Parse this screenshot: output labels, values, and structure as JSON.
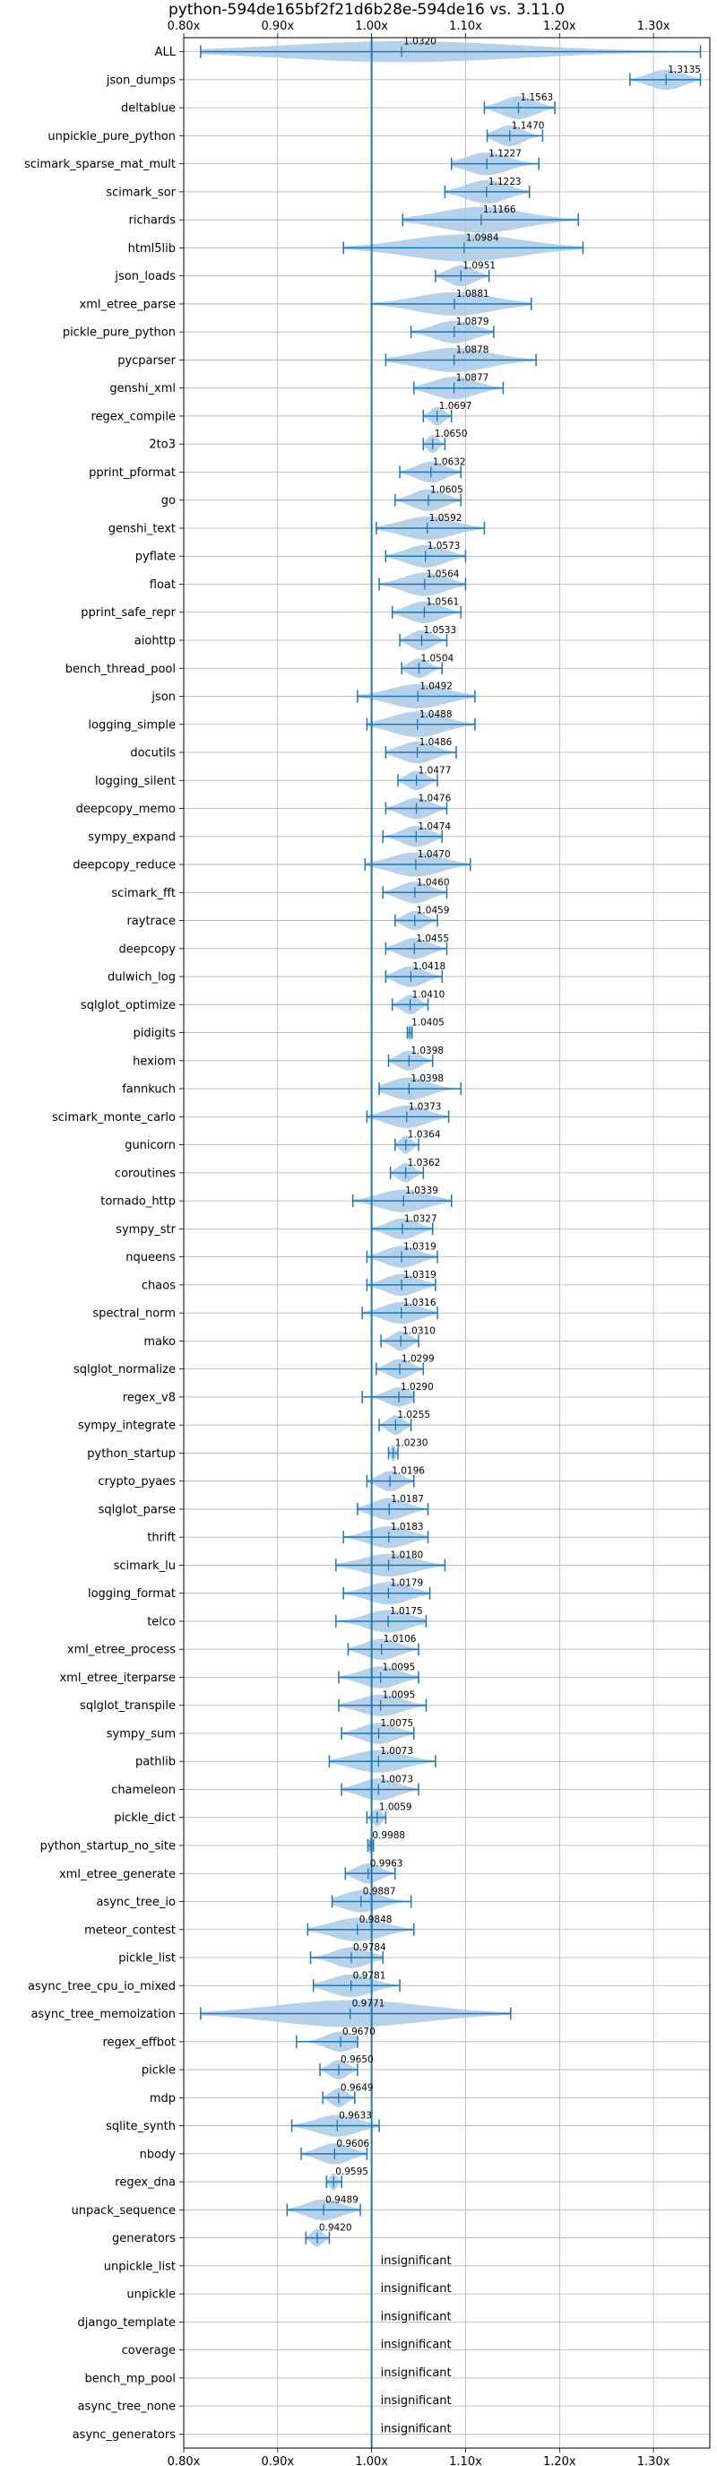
{
  "chart_data": {
    "type": "violin",
    "title": "python-594de165bf2f21d6b28e-594de16 vs. 3.11.0",
    "xlim": [
      0.8,
      1.36
    ],
    "xticks": [
      {
        "value": 0.8,
        "label": "0.80x"
      },
      {
        "value": 0.9,
        "label": "0.90x"
      },
      {
        "value": 1.0,
        "label": "1.00x"
      },
      {
        "value": 1.1,
        "label": "1.10x"
      },
      {
        "value": 1.2,
        "label": "1.20x"
      },
      {
        "value": 1.3,
        "label": "1.30x"
      }
    ],
    "reference_line": 1.0,
    "grid": true,
    "colors": {
      "violin": "#a9c9e6",
      "whisker": "#1f77b4",
      "grid": "#b0b0b0"
    },
    "benchmarks": [
      {
        "name": "ALL",
        "value": 1.032,
        "label": "1.0320",
        "min": 0.818,
        "max": 1.35,
        "spread": 0.03
      },
      {
        "name": "json_dumps",
        "value": 1.3135,
        "label": "1.3135",
        "min": 1.275,
        "max": 1.35,
        "spread": 0.025
      },
      {
        "name": "deltablue",
        "value": 1.1563,
        "label": "1.1563",
        "min": 1.12,
        "max": 1.195,
        "spread": 0.04
      },
      {
        "name": "unpickle_pure_python",
        "value": 1.147,
        "label": "1.1470",
        "min": 1.123,
        "max": 1.182,
        "spread": 0.03
      },
      {
        "name": "scimark_sparse_mat_mult",
        "value": 1.1227,
        "label": "1.1227",
        "min": 1.085,
        "max": 1.178,
        "spread": 0.04
      },
      {
        "name": "scimark_sor",
        "value": 1.1223,
        "label": "1.1223",
        "min": 1.078,
        "max": 1.168,
        "spread": 0.045
      },
      {
        "name": "richards",
        "value": 1.1166,
        "label": "1.1166",
        "min": 1.033,
        "max": 1.22,
        "spread": 0.06
      },
      {
        "name": "html5lib",
        "value": 1.0984,
        "label": "1.0984",
        "min": 0.97,
        "max": 1.225,
        "spread": 0.09
      },
      {
        "name": "json_loads",
        "value": 1.0951,
        "label": "1.0951",
        "min": 1.068,
        "max": 1.125,
        "spread": 0.03
      },
      {
        "name": "xml_etree_parse",
        "value": 1.0881,
        "label": "1.0881",
        "min": 1.0,
        "max": 1.17,
        "spread": 0.045
      },
      {
        "name": "pickle_pure_python",
        "value": 1.0879,
        "label": "1.0879",
        "min": 1.042,
        "max": 1.13,
        "spread": 0.04
      },
      {
        "name": "pycparser",
        "value": 1.0878,
        "label": "1.0878",
        "min": 1.015,
        "max": 1.175,
        "spread": 0.05
      },
      {
        "name": "genshi_xml",
        "value": 1.0877,
        "label": "1.0877",
        "min": 1.045,
        "max": 1.14,
        "spread": 0.04
      },
      {
        "name": "regex_compile",
        "value": 1.0697,
        "label": "1.0697",
        "min": 1.055,
        "max": 1.085,
        "spread": 0.015
      },
      {
        "name": "2to3",
        "value": 1.065,
        "label": "1.0650",
        "min": 1.055,
        "max": 1.078,
        "spread": 0.012
      },
      {
        "name": "pprint_pformat",
        "value": 1.0632,
        "label": "1.0632",
        "min": 1.03,
        "max": 1.095,
        "spread": 0.03
      },
      {
        "name": "go",
        "value": 1.0605,
        "label": "1.0605",
        "min": 1.025,
        "max": 1.095,
        "spread": 0.035
      },
      {
        "name": "genshi_text",
        "value": 1.0592,
        "label": "1.0592",
        "min": 1.005,
        "max": 1.12,
        "spread": 0.045
      },
      {
        "name": "pyflate",
        "value": 1.0573,
        "label": "1.0573",
        "min": 1.015,
        "max": 1.1,
        "spread": 0.04
      },
      {
        "name": "float",
        "value": 1.0564,
        "label": "1.0564",
        "min": 1.008,
        "max": 1.1,
        "spread": 0.045
      },
      {
        "name": "pprint_safe_repr",
        "value": 1.0561,
        "label": "1.0561",
        "min": 1.022,
        "max": 1.095,
        "spread": 0.035
      },
      {
        "name": "aiohttp",
        "value": 1.0533,
        "label": "1.0533",
        "min": 1.03,
        "max": 1.08,
        "spread": 0.025
      },
      {
        "name": "bench_thread_pool",
        "value": 1.0504,
        "label": "1.0504",
        "min": 1.032,
        "max": 1.075,
        "spread": 0.02
      },
      {
        "name": "json",
        "value": 1.0492,
        "label": "1.0492",
        "min": 0.985,
        "max": 1.11,
        "spread": 0.05
      },
      {
        "name": "logging_simple",
        "value": 1.0488,
        "label": "1.0488",
        "min": 0.995,
        "max": 1.11,
        "spread": 0.06
      },
      {
        "name": "docutils",
        "value": 1.0486,
        "label": "1.0486",
        "min": 1.015,
        "max": 1.09,
        "spread": 0.035
      },
      {
        "name": "logging_silent",
        "value": 1.0477,
        "label": "1.0477",
        "min": 1.028,
        "max": 1.07,
        "spread": 0.02
      },
      {
        "name": "deepcopy_memo",
        "value": 1.0476,
        "label": "1.0476",
        "min": 1.015,
        "max": 1.08,
        "spread": 0.03
      },
      {
        "name": "sympy_expand",
        "value": 1.0474,
        "label": "1.0474",
        "min": 1.012,
        "max": 1.075,
        "spread": 0.03
      },
      {
        "name": "deepcopy_reduce",
        "value": 1.047,
        "label": "1.0470",
        "min": 0.993,
        "max": 1.105,
        "spread": 0.05
      },
      {
        "name": "scimark_fft",
        "value": 1.046,
        "label": "1.0460",
        "min": 1.012,
        "max": 1.08,
        "spread": 0.035
      },
      {
        "name": "raytrace",
        "value": 1.0459,
        "label": "1.0459",
        "min": 1.025,
        "max": 1.07,
        "spread": 0.02
      },
      {
        "name": "deepcopy",
        "value": 1.0455,
        "label": "1.0455",
        "min": 1.015,
        "max": 1.08,
        "spread": 0.03
      },
      {
        "name": "dulwich_log",
        "value": 1.0418,
        "label": "1.0418",
        "min": 1.015,
        "max": 1.075,
        "spread": 0.03
      },
      {
        "name": "sqlglot_optimize",
        "value": 1.041,
        "label": "1.0410",
        "min": 1.022,
        "max": 1.06,
        "spread": 0.02
      },
      {
        "name": "pidigits",
        "value": 1.0405,
        "label": "1.0405",
        "min": 1.038,
        "max": 1.043,
        "spread": 0.003
      },
      {
        "name": "hexiom",
        "value": 1.0398,
        "label": "1.0398",
        "min": 1.018,
        "max": 1.065,
        "spread": 0.025
      },
      {
        "name": "fannkuch",
        "value": 1.0398,
        "label": "1.0398",
        "min": 1.008,
        "max": 1.095,
        "spread": 0.04
      },
      {
        "name": "scimark_monte_carlo",
        "value": 1.0373,
        "label": "1.0373",
        "min": 0.995,
        "max": 1.082,
        "spread": 0.04
      },
      {
        "name": "gunicorn",
        "value": 1.0364,
        "label": "1.0364",
        "min": 1.025,
        "max": 1.05,
        "spread": 0.012
      },
      {
        "name": "coroutines",
        "value": 1.0362,
        "label": "1.0362",
        "min": 1.02,
        "max": 1.055,
        "spread": 0.018
      },
      {
        "name": "tornado_http",
        "value": 1.0339,
        "label": "1.0339",
        "min": 0.98,
        "max": 1.085,
        "spread": 0.04
      },
      {
        "name": "sympy_str",
        "value": 1.0327,
        "label": "1.0327",
        "min": 1.0,
        "max": 1.065,
        "spread": 0.03
      },
      {
        "name": "nqueens",
        "value": 1.0319,
        "label": "1.0319",
        "min": 0.995,
        "max": 1.07,
        "spread": 0.035
      },
      {
        "name": "chaos",
        "value": 1.0319,
        "label": "1.0319",
        "min": 0.995,
        "max": 1.068,
        "spread": 0.035
      },
      {
        "name": "spectral_norm",
        "value": 1.0316,
        "label": "1.0316",
        "min": 0.99,
        "max": 1.07,
        "spread": 0.035
      },
      {
        "name": "mako",
        "value": 1.031,
        "label": "1.0310",
        "min": 1.01,
        "max": 1.05,
        "spread": 0.02
      },
      {
        "name": "sqlglot_normalize",
        "value": 1.0299,
        "label": "1.0299",
        "min": 1.005,
        "max": 1.055,
        "spread": 0.025
      },
      {
        "name": "regex_v8",
        "value": 1.029,
        "label": "1.0290",
        "min": 0.99,
        "max": 1.045,
        "spread": 0.02
      },
      {
        "name": "sympy_integrate",
        "value": 1.0255,
        "label": "1.0255",
        "min": 1.008,
        "max": 1.042,
        "spread": 0.02
      },
      {
        "name": "python_startup",
        "value": 1.023,
        "label": "1.0230",
        "min": 1.018,
        "max": 1.028,
        "spread": 0.005
      },
      {
        "name": "crypto_pyaes",
        "value": 1.0196,
        "label": "1.0196",
        "min": 0.995,
        "max": 1.045,
        "spread": 0.025
      },
      {
        "name": "sqlglot_parse",
        "value": 1.0187,
        "label": "1.0187",
        "min": 0.985,
        "max": 1.06,
        "spread": 0.035
      },
      {
        "name": "thrift",
        "value": 1.0183,
        "label": "1.0183",
        "min": 0.97,
        "max": 1.06,
        "spread": 0.035
      },
      {
        "name": "scimark_lu",
        "value": 1.018,
        "label": "1.0180",
        "min": 0.962,
        "max": 1.078,
        "spread": 0.04
      },
      {
        "name": "logging_format",
        "value": 1.0179,
        "label": "1.0179",
        "min": 0.97,
        "max": 1.062,
        "spread": 0.04
      },
      {
        "name": "telco",
        "value": 1.0175,
        "label": "1.0175",
        "min": 0.962,
        "max": 1.058,
        "spread": 0.04
      },
      {
        "name": "xml_etree_process",
        "value": 1.0106,
        "label": "1.0106",
        "min": 0.975,
        "max": 1.05,
        "spread": 0.03
      },
      {
        "name": "xml_etree_iterparse",
        "value": 1.0095,
        "label": "1.0095",
        "min": 0.965,
        "max": 1.05,
        "spread": 0.035
      },
      {
        "name": "sqlglot_transpile",
        "value": 1.0095,
        "label": "1.0095",
        "min": 0.965,
        "max": 1.058,
        "spread": 0.035
      },
      {
        "name": "sympy_sum",
        "value": 1.0075,
        "label": "1.0075",
        "min": 0.968,
        "max": 1.045,
        "spread": 0.03
      },
      {
        "name": "pathlib",
        "value": 1.0073,
        "label": "1.0073",
        "min": 0.955,
        "max": 1.068,
        "spread": 0.04
      },
      {
        "name": "chameleon",
        "value": 1.0073,
        "label": "1.0073",
        "min": 0.968,
        "max": 1.05,
        "spread": 0.035
      },
      {
        "name": "pickle_dict",
        "value": 1.0059,
        "label": "1.0059",
        "min": 0.995,
        "max": 1.015,
        "spread": 0.01
      },
      {
        "name": "python_startup_no_site",
        "value": 0.9988,
        "label": "0.9988",
        "min": 0.996,
        "max": 1.002,
        "spread": 0.003
      },
      {
        "name": "xml_etree_generate",
        "value": 0.9963,
        "label": "0.9963",
        "min": 0.972,
        "max": 1.025,
        "spread": 0.025
      },
      {
        "name": "async_tree_io",
        "value": 0.9887,
        "label": "0.9887",
        "min": 0.958,
        "max": 1.042,
        "spread": 0.035
      },
      {
        "name": "meteor_contest",
        "value": 0.9848,
        "label": "0.9848",
        "min": 0.932,
        "max": 1.045,
        "spread": 0.045
      },
      {
        "name": "pickle_list",
        "value": 0.9784,
        "label": "0.9784",
        "min": 0.935,
        "max": 1.012,
        "spread": 0.03
      },
      {
        "name": "async_tree_cpu_io_mixed",
        "value": 0.9781,
        "label": "0.9781",
        "min": 0.938,
        "max": 1.03,
        "spread": 0.04
      },
      {
        "name": "async_tree_memoization",
        "value": 0.9771,
        "label": "0.9771",
        "min": 0.818,
        "max": 1.148,
        "spread": 0.09
      },
      {
        "name": "regex_effbot",
        "value": 0.967,
        "label": "0.9670",
        "min": 0.92,
        "max": 0.985,
        "spread": 0.025
      },
      {
        "name": "pickle",
        "value": 0.965,
        "label": "0.9650",
        "min": 0.945,
        "max": 0.985,
        "spread": 0.02
      },
      {
        "name": "mdp",
        "value": 0.9649,
        "label": "0.9649",
        "min": 0.948,
        "max": 0.982,
        "spread": 0.018
      },
      {
        "name": "sqlite_synth",
        "value": 0.9633,
        "label": "0.9633",
        "min": 0.915,
        "max": 1.008,
        "spread": 0.035
      },
      {
        "name": "nbody",
        "value": 0.9606,
        "label": "0.9606",
        "min": 0.925,
        "max": 0.995,
        "spread": 0.03
      },
      {
        "name": "regex_dna",
        "value": 0.9595,
        "label": "0.9595",
        "min": 0.952,
        "max": 0.968,
        "spread": 0.008
      },
      {
        "name": "unpack_sequence",
        "value": 0.9489,
        "label": "0.9489",
        "min": 0.91,
        "max": 0.988,
        "spread": 0.03
      },
      {
        "name": "generators",
        "value": 0.942,
        "label": "0.9420",
        "min": 0.93,
        "max": 0.955,
        "spread": 0.01
      },
      {
        "name": "unpickle_list",
        "value": null,
        "label": "insignificant"
      },
      {
        "name": "unpickle",
        "value": null,
        "label": "insignificant"
      },
      {
        "name": "django_template",
        "value": null,
        "label": "insignificant"
      },
      {
        "name": "coverage",
        "value": null,
        "label": "insignificant"
      },
      {
        "name": "bench_mp_pool",
        "value": null,
        "label": "insignificant"
      },
      {
        "name": "async_tree_none",
        "value": null,
        "label": "insignificant"
      },
      {
        "name": "async_generators",
        "value": null,
        "label": "insignificant"
      }
    ]
  }
}
